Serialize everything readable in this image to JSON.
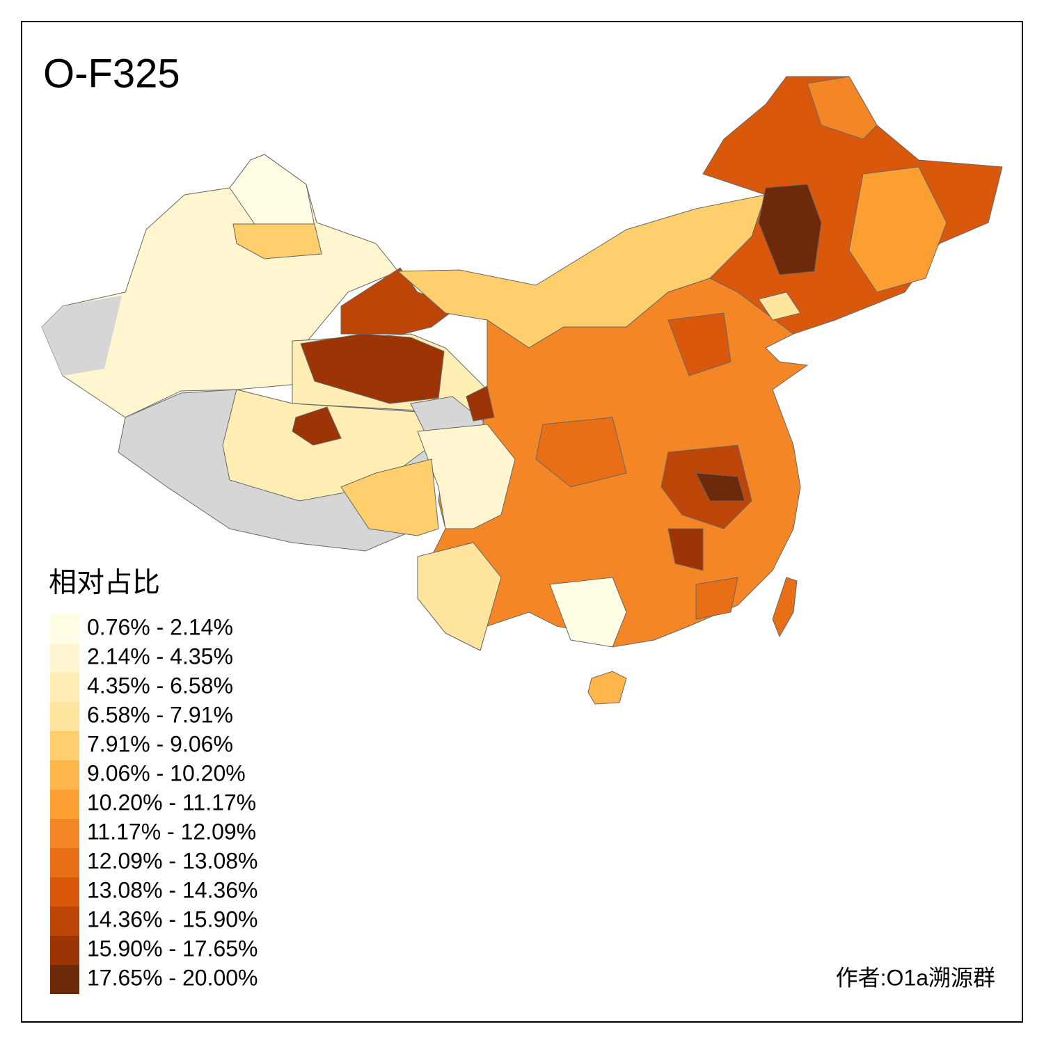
{
  "title": "O-F325",
  "legend": {
    "title": "相对占比",
    "items": [
      {
        "label": "0.76% - 2.14%",
        "color": "#fffde4"
      },
      {
        "label": "2.14% - 4.35%",
        "color": "#fff6cf"
      },
      {
        "label": "4.35% - 6.58%",
        "color": "#ffeeb4"
      },
      {
        "label": "6.58% - 7.91%",
        "color": "#fee49c"
      },
      {
        "label": "7.91% - 9.06%",
        "color": "#fecf6c"
      },
      {
        "label": "9.06% - 10.20%",
        "color": "#feb64b"
      },
      {
        "label": "10.20% - 11.17%",
        "color": "#fd9e32"
      },
      {
        "label": "11.17% - 12.09%",
        "color": "#f58626"
      },
      {
        "label": "12.09% - 13.08%",
        "color": "#e96f16"
      },
      {
        "label": "13.08% - 14.36%",
        "color": "#d9580c"
      },
      {
        "label": "14.36% - 15.90%",
        "color": "#bd4508"
      },
      {
        "label": "15.90% - 17.65%",
        "color": "#9c3405"
      },
      {
        "label": "17.65% - 20.00%",
        "color": "#6d2a0b"
      }
    ]
  },
  "credit": "作者:O1a溯源群"
}
